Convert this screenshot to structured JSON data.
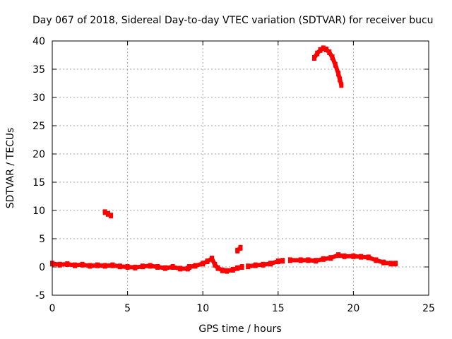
{
  "chart_data": {
    "type": "scatter",
    "title": "Day 067 of 2018, Sidereal Day-to-day VTEC variation (SDTVAR) for receiver bucu",
    "xlabel": "GPS time / hours",
    "ylabel": "SDTVAR / TECUs",
    "xlim": [
      0,
      25
    ],
    "ylim": [
      -5,
      40
    ],
    "xticks": [
      0,
      5,
      10,
      15,
      20,
      25
    ],
    "yticks": [
      -5,
      0,
      5,
      10,
      15,
      20,
      25,
      30,
      35,
      40
    ],
    "grid": true,
    "colors": {
      "series": "#ff0000",
      "grid": "#a0a0a0",
      "axis": "#000000"
    },
    "series": [
      {
        "name": "SDTVAR",
        "color": "#ff0000",
        "segments": [
          [
            [
              0,
              0.6
            ],
            [
              0.5,
              0.4
            ],
            [
              1,
              0.5
            ],
            [
              1.5,
              0.3
            ],
            [
              2,
              0.4
            ],
            [
              2.5,
              0.2
            ],
            [
              3,
              0.3
            ],
            [
              3.5,
              0.2
            ],
            [
              4,
              0.3
            ],
            [
              4.5,
              0.1
            ],
            [
              5,
              0.0
            ],
            [
              5.5,
              -0.1
            ],
            [
              6,
              0.1
            ],
            [
              6.5,
              0.2
            ],
            [
              7,
              0.0
            ],
            [
              7.5,
              -0.2
            ],
            [
              8,
              0.0
            ],
            [
              8.5,
              -0.3
            ],
            [
              9,
              -0.3
            ]
          ],
          [
            [
              9.1,
              0.0
            ],
            [
              9.5,
              0.2
            ],
            [
              10,
              0.6
            ],
            [
              10.3,
              1.0
            ],
            [
              10.6,
              1.5
            ],
            [
              10.8,
              0.4
            ],
            [
              11,
              -0.2
            ],
            [
              11.3,
              -0.6
            ],
            [
              11.6,
              -0.7
            ],
            [
              12,
              -0.5
            ],
            [
              12.3,
              -0.2
            ],
            [
              12.6,
              0.0
            ]
          ],
          [
            [
              3.5,
              9.7
            ],
            [
              3.7,
              9.4
            ],
            [
              3.9,
              9.1
            ]
          ],
          [
            [
              12.3,
              2.9
            ],
            [
              12.5,
              3.4
            ]
          ],
          [
            [
              13,
              0.1
            ],
            [
              13.5,
              0.3
            ],
            [
              14,
              0.4
            ],
            [
              14.5,
              0.6
            ],
            [
              15,
              1.0
            ],
            [
              15.3,
              1.1
            ]
          ],
          [
            [
              15.8,
              1.2
            ],
            [
              16.5,
              1.2
            ],
            [
              17,
              1.2
            ],
            [
              17.5,
              1.1
            ],
            [
              18,
              1.4
            ],
            [
              18.5,
              1.6
            ],
            [
              19,
              2.1
            ],
            [
              19.4,
              1.9
            ],
            [
              20,
              1.9
            ],
            [
              20.5,
              1.8
            ],
            [
              21,
              1.7
            ],
            [
              21.5,
              1.2
            ],
            [
              22,
              0.8
            ],
            [
              22.5,
              0.6
            ],
            [
              22.8,
              0.6
            ]
          ],
          [
            [
              17.4,
              37.0
            ],
            [
              17.6,
              37.8
            ],
            [
              17.8,
              38.4
            ],
            [
              18.0,
              38.7
            ],
            [
              18.2,
              38.5
            ],
            [
              18.4,
              38.0
            ],
            [
              18.6,
              37.1
            ],
            [
              18.8,
              35.8
            ],
            [
              19.0,
              34.2
            ],
            [
              19.1,
              33.2
            ],
            [
              19.2,
              32.2
            ]
          ]
        ]
      }
    ]
  }
}
